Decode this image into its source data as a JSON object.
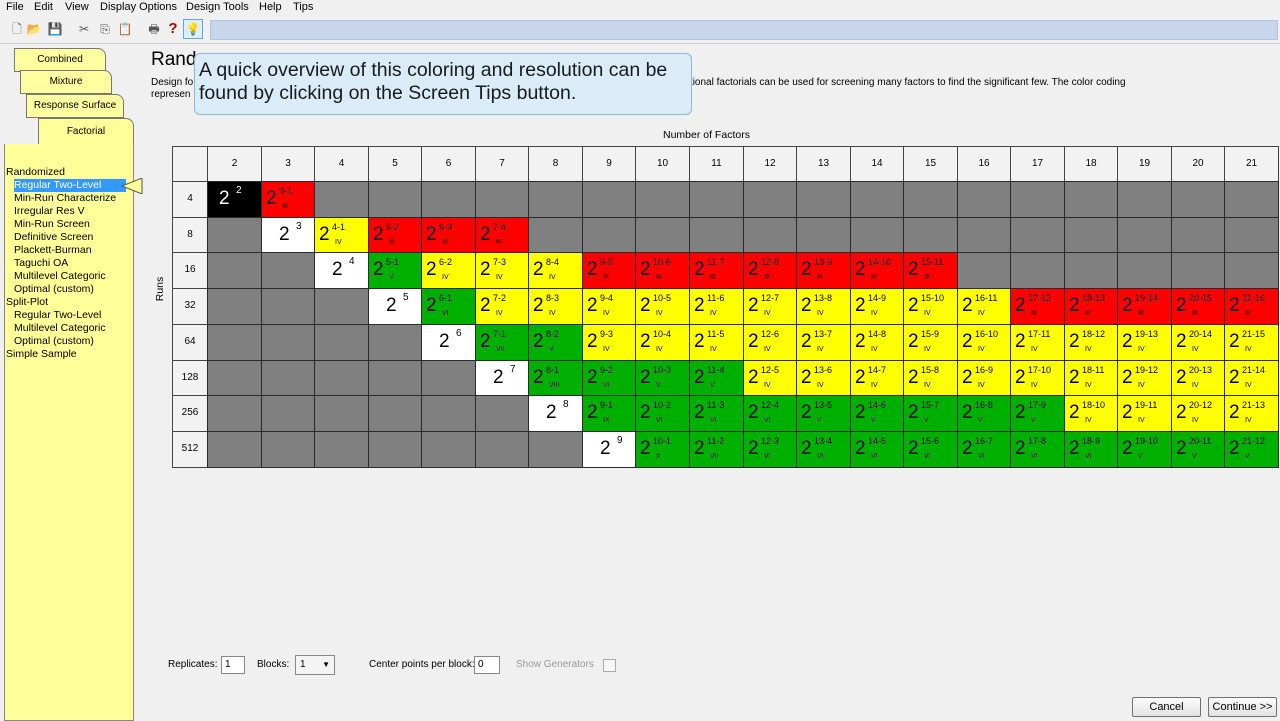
{
  "menu": [
    "File",
    "Edit",
    "View",
    "Display Options",
    "Design Tools",
    "Help",
    "Tips"
  ],
  "toolbar": {
    "icons": [
      "new-file-icon",
      "open-folder-icon",
      "save-icon",
      "cut-icon",
      "copy-icon",
      "paste-icon",
      "print-icon",
      "help-icon",
      "screen-tips-icon"
    ],
    "help_glyph": "?"
  },
  "tabs": [
    "Combined",
    "Mixture",
    "Response Surface",
    "Factorial"
  ],
  "tree": [
    {
      "label": "Randomized",
      "level": 0
    },
    {
      "label": "Regular Two-Level",
      "level": 1,
      "selected": true
    },
    {
      "label": "Min-Run Characterize",
      "level": 1
    },
    {
      "label": "Irregular Res V",
      "level": 1
    },
    {
      "label": "Min-Run Screen",
      "level": 1
    },
    {
      "label": "Definitive Screen",
      "level": 1
    },
    {
      "label": "Plackett-Burman",
      "level": 1
    },
    {
      "label": "Taguchi OA",
      "level": 1
    },
    {
      "label": "Multilevel Categoric",
      "level": 1
    },
    {
      "label": "Optimal (custom)",
      "level": 1
    },
    {
      "label": "Split-Plot",
      "level": 0
    },
    {
      "label": "Regular Two-Level",
      "level": 1
    },
    {
      "label": "Multilevel Categoric",
      "level": 1
    },
    {
      "label": "Optimal (custom)",
      "level": 1
    },
    {
      "label": "Simple Sample",
      "level": 0
    }
  ],
  "main": {
    "title": "Rand",
    "desc_line1": "Design fo",
    "desc_line1_tail": "ctions.  Fractional factorials can be used for screening many factors to find the significant few. The color coding",
    "desc_line2": "represen",
    "callout": "A quick overview of this coloring and resolution can be found by clicking on the Screen Tips button."
  },
  "grid": {
    "x_label": "Number of Factors",
    "y_label": "Runs",
    "factors": [
      "2",
      "3",
      "4",
      "5",
      "6",
      "7",
      "8",
      "9",
      "10",
      "11",
      "12",
      "13",
      "14",
      "15",
      "16",
      "17",
      "18",
      "19",
      "20",
      "21"
    ],
    "runs": [
      "4",
      "8",
      "16",
      "32",
      "64",
      "128",
      "256",
      "512"
    ],
    "rows": [
      [
        {
          "c": "black",
          "b": "2",
          "e": "2"
        },
        {
          "c": "red",
          "b": "2",
          "e": "3-1",
          "r": "III"
        },
        {
          "c": "gray"
        },
        {
          "c": "gray"
        },
        {
          "c": "gray"
        },
        {
          "c": "gray"
        },
        {
          "c": "gray"
        },
        {
          "c": "gray"
        },
        {
          "c": "gray"
        },
        {
          "c": "gray"
        },
        {
          "c": "gray"
        },
        {
          "c": "gray"
        },
        {
          "c": "gray"
        },
        {
          "c": "gray"
        },
        {
          "c": "gray"
        },
        {
          "c": "gray"
        },
        {
          "c": "gray"
        },
        {
          "c": "gray"
        },
        {
          "c": "gray"
        },
        {
          "c": "gray"
        }
      ],
      [
        {
          "c": "gray"
        },
        {
          "c": "white",
          "b": "2",
          "e": "3"
        },
        {
          "c": "yellow",
          "b": "2",
          "e": "4-1",
          "r": "IV"
        },
        {
          "c": "red",
          "b": "2",
          "e": "5-2",
          "r": "III"
        },
        {
          "c": "red",
          "b": "2",
          "e": "6-3",
          "r": "III"
        },
        {
          "c": "red",
          "b": "2",
          "e": "7-4",
          "r": "III"
        },
        {
          "c": "gray"
        },
        {
          "c": "gray"
        },
        {
          "c": "gray"
        },
        {
          "c": "gray"
        },
        {
          "c": "gray"
        },
        {
          "c": "gray"
        },
        {
          "c": "gray"
        },
        {
          "c": "gray"
        },
        {
          "c": "gray"
        },
        {
          "c": "gray"
        },
        {
          "c": "gray"
        },
        {
          "c": "gray"
        },
        {
          "c": "gray"
        },
        {
          "c": "gray"
        }
      ],
      [
        {
          "c": "gray"
        },
        {
          "c": "gray"
        },
        {
          "c": "white",
          "b": "2",
          "e": "4"
        },
        {
          "c": "green",
          "b": "2",
          "e": "5-1",
          "r": "V"
        },
        {
          "c": "yellow",
          "b": "2",
          "e": "6-2",
          "r": "IV"
        },
        {
          "c": "yellow",
          "b": "2",
          "e": "7-3",
          "r": "IV"
        },
        {
          "c": "yellow",
          "b": "2",
          "e": "8-4",
          "r": "IV"
        },
        {
          "c": "red",
          "b": "2",
          "e": "9-5",
          "r": "III"
        },
        {
          "c": "red",
          "b": "2",
          "e": "10-6",
          "r": "III"
        },
        {
          "c": "red",
          "b": "2",
          "e": "11-7",
          "r": "III"
        },
        {
          "c": "red",
          "b": "2",
          "e": "12-8",
          "r": "III"
        },
        {
          "c": "red",
          "b": "2",
          "e": "13-9",
          "r": "III"
        },
        {
          "c": "red",
          "b": "2",
          "e": "14-10",
          "r": "III"
        },
        {
          "c": "red",
          "b": "2",
          "e": "15-11",
          "r": "III"
        },
        {
          "c": "gray"
        },
        {
          "c": "gray"
        },
        {
          "c": "gray"
        },
        {
          "c": "gray"
        },
        {
          "c": "gray"
        },
        {
          "c": "gray"
        }
      ],
      [
        {
          "c": "gray"
        },
        {
          "c": "gray"
        },
        {
          "c": "gray"
        },
        {
          "c": "white",
          "b": "2",
          "e": "5"
        },
        {
          "c": "green",
          "b": "2",
          "e": "6-1",
          "r": "VI"
        },
        {
          "c": "yellow",
          "b": "2",
          "e": "7-2",
          "r": "IV"
        },
        {
          "c": "yellow",
          "b": "2",
          "e": "8-3",
          "r": "IV"
        },
        {
          "c": "yellow",
          "b": "2",
          "e": "9-4",
          "r": "IV"
        },
        {
          "c": "yellow",
          "b": "2",
          "e": "10-5",
          "r": "IV"
        },
        {
          "c": "yellow",
          "b": "2",
          "e": "11-6",
          "r": "IV"
        },
        {
          "c": "yellow",
          "b": "2",
          "e": "12-7",
          "r": "IV"
        },
        {
          "c": "yellow",
          "b": "2",
          "e": "13-8",
          "r": "IV"
        },
        {
          "c": "yellow",
          "b": "2",
          "e": "14-9",
          "r": "IV"
        },
        {
          "c": "yellow",
          "b": "2",
          "e": "15-10",
          "r": "IV"
        },
        {
          "c": "yellow",
          "b": "2",
          "e": "16-11",
          "r": "IV"
        },
        {
          "c": "red",
          "b": "2",
          "e": "17-12",
          "r": "III"
        },
        {
          "c": "red",
          "b": "2",
          "e": "18-13",
          "r": "III"
        },
        {
          "c": "red",
          "b": "2",
          "e": "19-14",
          "r": "III"
        },
        {
          "c": "red",
          "b": "2",
          "e": "20-15",
          "r": "III"
        },
        {
          "c": "red",
          "b": "2",
          "e": "21-16",
          "r": "III"
        }
      ],
      [
        {
          "c": "gray"
        },
        {
          "c": "gray"
        },
        {
          "c": "gray"
        },
        {
          "c": "gray"
        },
        {
          "c": "white",
          "b": "2",
          "e": "6"
        },
        {
          "c": "green",
          "b": "2",
          "e": "7-1",
          "r": "VII"
        },
        {
          "c": "green",
          "b": "2",
          "e": "8-2",
          "r": "V"
        },
        {
          "c": "yellow",
          "b": "2",
          "e": "9-3",
          "r": "IV"
        },
        {
          "c": "yellow",
          "b": "2",
          "e": "10-4",
          "r": "IV"
        },
        {
          "c": "yellow",
          "b": "2",
          "e": "11-5",
          "r": "IV"
        },
        {
          "c": "yellow",
          "b": "2",
          "e": "12-6",
          "r": "IV"
        },
        {
          "c": "yellow",
          "b": "2",
          "e": "13-7",
          "r": "IV"
        },
        {
          "c": "yellow",
          "b": "2",
          "e": "14-8",
          "r": "IV"
        },
        {
          "c": "yellow",
          "b": "2",
          "e": "15-9",
          "r": "IV"
        },
        {
          "c": "yellow",
          "b": "2",
          "e": "16-10",
          "r": "IV"
        },
        {
          "c": "yellow",
          "b": "2",
          "e": "17-11",
          "r": "IV"
        },
        {
          "c": "yellow",
          "b": "2",
          "e": "18-12",
          "r": "IV"
        },
        {
          "c": "yellow",
          "b": "2",
          "e": "19-13",
          "r": "IV"
        },
        {
          "c": "yellow",
          "b": "2",
          "e": "20-14",
          "r": "IV"
        },
        {
          "c": "yellow",
          "b": "2",
          "e": "21-15",
          "r": "IV"
        }
      ],
      [
        {
          "c": "gray"
        },
        {
          "c": "gray"
        },
        {
          "c": "gray"
        },
        {
          "c": "gray"
        },
        {
          "c": "gray"
        },
        {
          "c": "white",
          "b": "2",
          "e": "7"
        },
        {
          "c": "green",
          "b": "2",
          "e": "8-1",
          "r": "VIII"
        },
        {
          "c": "green",
          "b": "2",
          "e": "9-2",
          "r": "VI"
        },
        {
          "c": "green",
          "b": "2",
          "e": "10-3",
          "r": "V"
        },
        {
          "c": "green",
          "b": "2",
          "e": "11-4",
          "r": "V"
        },
        {
          "c": "yellow",
          "b": "2",
          "e": "12-5",
          "r": "IV"
        },
        {
          "c": "yellow",
          "b": "2",
          "e": "13-6",
          "r": "IV"
        },
        {
          "c": "yellow",
          "b": "2",
          "e": "14-7",
          "r": "IV"
        },
        {
          "c": "yellow",
          "b": "2",
          "e": "15-8",
          "r": "IV"
        },
        {
          "c": "yellow",
          "b": "2",
          "e": "16-9",
          "r": "IV"
        },
        {
          "c": "yellow",
          "b": "2",
          "e": "17-10",
          "r": "IV"
        },
        {
          "c": "yellow",
          "b": "2",
          "e": "18-11",
          "r": "IV"
        },
        {
          "c": "yellow",
          "b": "2",
          "e": "19-12",
          "r": "IV"
        },
        {
          "c": "yellow",
          "b": "2",
          "e": "20-13",
          "r": "IV"
        },
        {
          "c": "yellow",
          "b": "2",
          "e": "21-14",
          "r": "IV"
        }
      ],
      [
        {
          "c": "gray"
        },
        {
          "c": "gray"
        },
        {
          "c": "gray"
        },
        {
          "c": "gray"
        },
        {
          "c": "gray"
        },
        {
          "c": "gray"
        },
        {
          "c": "white",
          "b": "2",
          "e": "8"
        },
        {
          "c": "green",
          "b": "2",
          "e": "9-1",
          "r": "IX"
        },
        {
          "c": "green",
          "b": "2",
          "e": "10-2",
          "r": "VI"
        },
        {
          "c": "green",
          "b": "2",
          "e": "11-3",
          "r": "VI"
        },
        {
          "c": "green",
          "b": "2",
          "e": "12-4",
          "r": "VI"
        },
        {
          "c": "green",
          "b": "2",
          "e": "13-5",
          "r": "V"
        },
        {
          "c": "green",
          "b": "2",
          "e": "14-6",
          "r": "V"
        },
        {
          "c": "green",
          "b": "2",
          "e": "15-7",
          "r": "V"
        },
        {
          "c": "green",
          "b": "2",
          "e": "16-8",
          "r": "V"
        },
        {
          "c": "green",
          "b": "2",
          "e": "17-9",
          "r": "V"
        },
        {
          "c": "yellow",
          "b": "2",
          "e": "18-10",
          "r": "IV"
        },
        {
          "c": "yellow",
          "b": "2",
          "e": "19-11",
          "r": "IV"
        },
        {
          "c": "yellow",
          "b": "2",
          "e": "20-12",
          "r": "IV"
        },
        {
          "c": "yellow",
          "b": "2",
          "e": "21-13",
          "r": "IV"
        }
      ],
      [
        {
          "c": "gray"
        },
        {
          "c": "gray"
        },
        {
          "c": "gray"
        },
        {
          "c": "gray"
        },
        {
          "c": "gray"
        },
        {
          "c": "gray"
        },
        {
          "c": "gray"
        },
        {
          "c": "white",
          "b": "2",
          "e": "9"
        },
        {
          "c": "green",
          "b": "2",
          "e": "10-1",
          "r": "X"
        },
        {
          "c": "green",
          "b": "2",
          "e": "11-2",
          "r": "VII"
        },
        {
          "c": "green",
          "b": "2",
          "e": "12-3",
          "r": "VI"
        },
        {
          "c": "green",
          "b": "2",
          "e": "13-4",
          "r": "VI"
        },
        {
          "c": "green",
          "b": "2",
          "e": "14-5",
          "r": "VI"
        },
        {
          "c": "green",
          "b": "2",
          "e": "15-6",
          "r": "VI"
        },
        {
          "c": "green",
          "b": "2",
          "e": "16-7",
          "r": "VI"
        },
        {
          "c": "green",
          "b": "2",
          "e": "17-8",
          "r": "VI"
        },
        {
          "c": "green",
          "b": "2",
          "e": "18-9",
          "r": "VI"
        },
        {
          "c": "green",
          "b": "2",
          "e": "19-10",
          "r": "V"
        },
        {
          "c": "green",
          "b": "2",
          "e": "20-11",
          "r": "V"
        },
        {
          "c": "green",
          "b": "2",
          "e": "21-12",
          "r": "V"
        }
      ]
    ]
  },
  "controls": {
    "replicates_label": "Replicates:",
    "replicates_value": "1",
    "blocks_label": "Blocks:",
    "blocks_value": "1",
    "center_points_label": "Center points per block:",
    "center_points_value": "0",
    "show_generators_label": "Show Generators",
    "cancel_label": "Cancel",
    "continue_label": "Continue >>"
  },
  "colors": {
    "red": "#ff0000",
    "yellow": "#ffff00",
    "green": "#00b000",
    "gray": "#808080",
    "white": "#ffffff",
    "black": "#000000",
    "panel_yellow": "#ffff99",
    "selection_blue": "#3399ff"
  }
}
